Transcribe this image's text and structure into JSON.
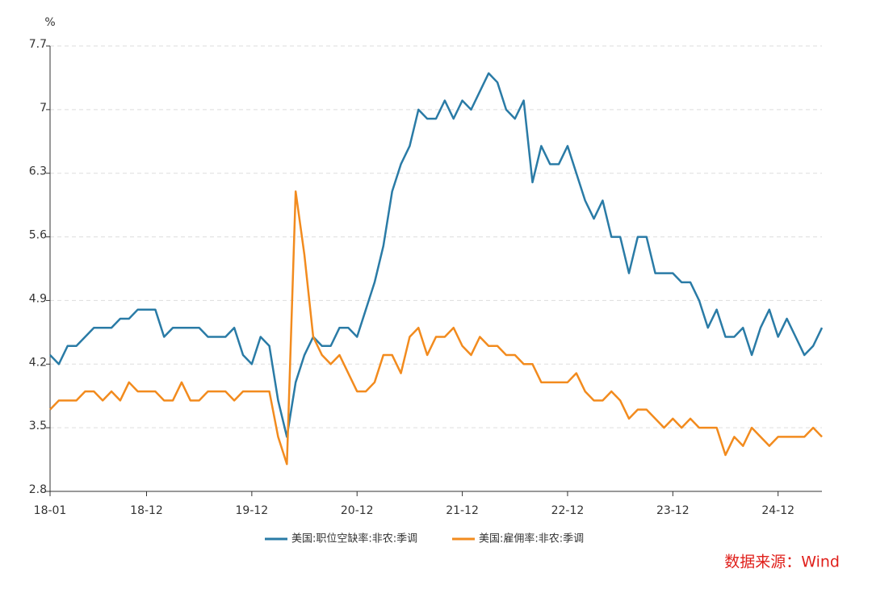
{
  "chart_data": {
    "type": "line",
    "y_unit_label": "%",
    "source": "数据来源：Wind",
    "categories": [
      "18-01",
      null,
      null,
      null,
      null,
      null,
      null,
      null,
      null,
      null,
      null,
      "18-12",
      null,
      null,
      null,
      null,
      null,
      null,
      null,
      null,
      null,
      null,
      null,
      "19-12",
      null,
      null,
      null,
      null,
      null,
      null,
      null,
      null,
      null,
      null,
      null,
      "20-12",
      null,
      null,
      null,
      null,
      null,
      null,
      null,
      null,
      null,
      null,
      null,
      "21-12",
      null,
      null,
      null,
      null,
      null,
      null,
      null,
      null,
      null,
      null,
      null,
      "22-12",
      null,
      null,
      null,
      null,
      null,
      null,
      null,
      null,
      null,
      null,
      null,
      "23-12",
      null,
      null,
      null,
      null,
      null,
      null,
      null,
      null,
      null,
      null,
      null,
      "24-12",
      null,
      null,
      null,
      null,
      null
    ],
    "series": [
      {
        "name": "美国:职位空缺率:非农:季调",
        "color": "#2a7ba6",
        "values": [
          4.3,
          4.2,
          4.4,
          4.4,
          4.5,
          4.6,
          4.6,
          4.6,
          4.7,
          4.7,
          4.8,
          4.8,
          4.8,
          4.5,
          4.6,
          4.6,
          4.6,
          4.6,
          4.5,
          4.5,
          4.5,
          4.6,
          4.3,
          4.2,
          4.5,
          4.4,
          3.8,
          3.4,
          4.0,
          4.3,
          4.5,
          4.4,
          4.4,
          4.6,
          4.6,
          4.5,
          4.8,
          5.1,
          5.5,
          6.1,
          6.4,
          6.6,
          7.0,
          6.9,
          6.9,
          7.1,
          6.9,
          7.1,
          7.0,
          7.2,
          7.4,
          7.3,
          7.0,
          6.9,
          7.1,
          6.2,
          6.6,
          6.4,
          6.4,
          6.6,
          6.3,
          6.0,
          5.8,
          6.0,
          5.6,
          5.6,
          5.2,
          5.6,
          5.6,
          5.2,
          5.2,
          5.2,
          5.1,
          5.1,
          4.9,
          4.6,
          4.8,
          4.5,
          4.5,
          4.6,
          4.3,
          4.6,
          4.8,
          4.5,
          4.7,
          4.5,
          4.3,
          4.4,
          4.6
        ]
      },
      {
        "name": "美国:雇佣率:非农:季调",
        "color": "#f28b1e",
        "values": [
          3.7,
          3.8,
          3.8,
          3.8,
          3.9,
          3.9,
          3.8,
          3.9,
          3.8,
          4.0,
          3.9,
          3.9,
          3.9,
          3.8,
          3.8,
          4.0,
          3.8,
          3.8,
          3.9,
          3.9,
          3.9,
          3.8,
          3.9,
          3.9,
          3.9,
          3.9,
          3.4,
          3.1,
          6.1,
          5.4,
          4.5,
          4.3,
          4.2,
          4.3,
          4.1,
          3.9,
          3.9,
          4.0,
          4.3,
          4.3,
          4.1,
          4.5,
          4.6,
          4.3,
          4.5,
          4.5,
          4.6,
          4.4,
          4.3,
          4.5,
          4.4,
          4.4,
          4.3,
          4.3,
          4.2,
          4.2,
          4.0,
          4.0,
          4.0,
          4.0,
          4.1,
          3.9,
          3.8,
          3.8,
          3.9,
          3.8,
          3.6,
          3.7,
          3.7,
          3.6,
          3.5,
          3.6,
          3.5,
          3.6,
          3.5,
          3.5,
          3.5,
          3.2,
          3.4,
          3.3,
          3.5,
          3.4,
          3.3,
          3.4,
          3.4,
          3.4,
          3.4,
          3.5,
          3.4
        ]
      }
    ],
    "ylim": [
      2.8,
      7.7
    ],
    "yticks": [
      2.8,
      3.5,
      4.2,
      4.9,
      5.6,
      6.3,
      7,
      7.7
    ],
    "grid": true
  }
}
